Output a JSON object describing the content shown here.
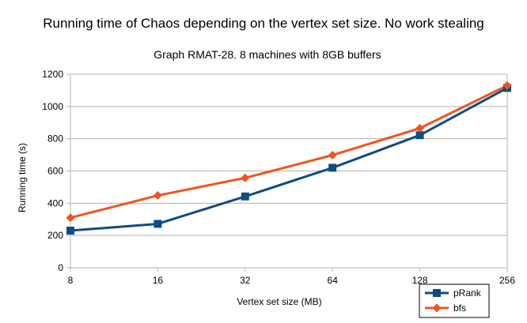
{
  "chart_data": {
    "type": "line",
    "title": "Running time of Chaos depending on the vertex set size. No work stealing",
    "subtitle": "Graph RMAT-28. 8 machines with 8GB buffers",
    "xlabel": "Vertex set size (MB)",
    "ylabel": "Running time (s)",
    "categories": [
      "8",
      "16",
      "32",
      "64",
      "128",
      "256"
    ],
    "ylim": [
      0,
      1200
    ],
    "yticks": [
      0,
      200,
      400,
      600,
      800,
      1000,
      1200
    ],
    "grid": "horizontal",
    "legend_position": "bottom-right",
    "series": [
      {
        "name": "pRank",
        "color": "#0f4c81",
        "marker": "square",
        "values": [
          230,
          272,
          442,
          620,
          822,
          1115
        ]
      },
      {
        "name": "bfs",
        "color": "#f0541e",
        "marker": "diamond",
        "values": [
          310,
          448,
          557,
          698,
          865,
          1130
        ]
      }
    ]
  }
}
